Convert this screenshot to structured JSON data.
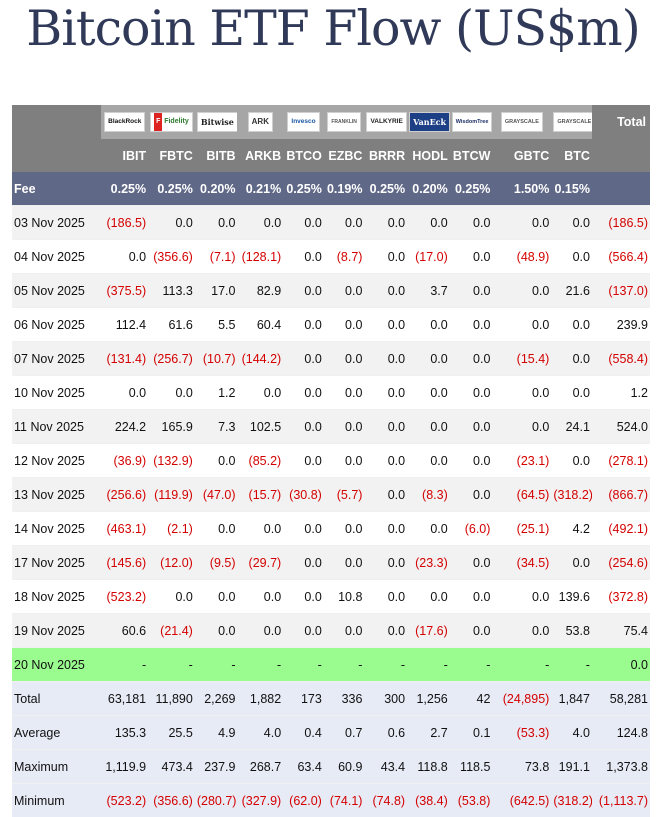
{
  "title": "Bitcoin ETF Flow (US$m)",
  "logos": [
    {
      "name": "blackrock-logo",
      "text": "BlackRock",
      "cls": ""
    },
    {
      "name": "fidelity-logo",
      "text": "Fidelity",
      "cls": "fid"
    },
    {
      "name": "bitwise-logo",
      "text": "Bitwise",
      "cls": "bw"
    },
    {
      "name": "ark-invest-logo",
      "text": "ARK",
      "cls": "ark"
    },
    {
      "name": "invesco-logo",
      "text": "Invesco",
      "cls": "inv"
    },
    {
      "name": "franklin-templeton-logo",
      "text": "FRANKLIN",
      "cls": "ft"
    },
    {
      "name": "valkyrie-logo",
      "text": "VALKYRIE",
      "cls": "val"
    },
    {
      "name": "vaneck-logo",
      "text": "VanEck",
      "cls": "ve"
    },
    {
      "name": "wisdomtree-logo",
      "text": "WisdomTree",
      "cls": "wt"
    },
    {
      "name": "grayscale-logo",
      "text": "GRAYSCALE",
      "cls": "gs"
    },
    {
      "name": "grayscale-logo",
      "text": "GRAYSCALE",
      "cls": "gs"
    }
  ],
  "header": {
    "total_label": "Total",
    "fee_label": "Fee",
    "tickers": [
      "IBIT",
      "FBTC",
      "BITB",
      "ARKB",
      "BTCO",
      "EZBC",
      "BRRR",
      "HODL",
      "BTCW",
      "GBTC",
      "BTC"
    ],
    "fees": [
      "0.25%",
      "0.25%",
      "0.20%",
      "0.21%",
      "0.25%",
      "0.19%",
      "0.25%",
      "0.20%",
      "0.25%",
      "1.50%",
      "0.15%"
    ]
  },
  "rows": [
    {
      "label": "03 Nov 2025",
      "values": [
        "(186.5)",
        "0.0",
        "0.0",
        "0.0",
        "0.0",
        "0.0",
        "0.0",
        "0.0",
        "0.0",
        "0.0",
        "0.0"
      ],
      "total": "(186.5)",
      "style": "shade"
    },
    {
      "label": "04 Nov 2025",
      "values": [
        "0.0",
        "(356.6)",
        "(7.1)",
        "(128.1)",
        "0.0",
        "(8.7)",
        "0.0",
        "(17.0)",
        "0.0",
        "(48.9)",
        "0.0"
      ],
      "total": "(566.4)",
      "style": ""
    },
    {
      "label": "05 Nov 2025",
      "values": [
        "(375.5)",
        "113.3",
        "17.0",
        "82.9",
        "0.0",
        "0.0",
        "0.0",
        "3.7",
        "0.0",
        "0.0",
        "21.6"
      ],
      "total": "(137.0)",
      "style": "shade"
    },
    {
      "label": "06 Nov 2025",
      "values": [
        "112.4",
        "61.6",
        "5.5",
        "60.4",
        "0.0",
        "0.0",
        "0.0",
        "0.0",
        "0.0",
        "0.0",
        "0.0"
      ],
      "total": "239.9",
      "style": ""
    },
    {
      "label": "07 Nov 2025",
      "values": [
        "(131.4)",
        "(256.7)",
        "(10.7)",
        "(144.2)",
        "0.0",
        "0.0",
        "0.0",
        "0.0",
        "0.0",
        "(15.4)",
        "0.0"
      ],
      "total": "(558.4)",
      "style": "shade"
    },
    {
      "label": "10 Nov 2025",
      "values": [
        "0.0",
        "0.0",
        "1.2",
        "0.0",
        "0.0",
        "0.0",
        "0.0",
        "0.0",
        "0.0",
        "0.0",
        "0.0"
      ],
      "total": "1.2",
      "style": ""
    },
    {
      "label": "11 Nov 2025",
      "values": [
        "224.2",
        "165.9",
        "7.3",
        "102.5",
        "0.0",
        "0.0",
        "0.0",
        "0.0",
        "0.0",
        "0.0",
        "24.1"
      ],
      "total": "524.0",
      "style": "shade"
    },
    {
      "label": "12 Nov 2025",
      "values": [
        "(36.9)",
        "(132.9)",
        "0.0",
        "(85.2)",
        "0.0",
        "0.0",
        "0.0",
        "0.0",
        "0.0",
        "(23.1)",
        "0.0"
      ],
      "total": "(278.1)",
      "style": ""
    },
    {
      "label": "13 Nov 2025",
      "values": [
        "(256.6)",
        "(119.9)",
        "(47.0)",
        "(15.7)",
        "(30.8)",
        "(5.7)",
        "0.0",
        "(8.3)",
        "0.0",
        "(64.5)",
        "(318.2)"
      ],
      "total": "(866.7)",
      "style": "shade"
    },
    {
      "label": "14 Nov 2025",
      "values": [
        "(463.1)",
        "(2.1)",
        "0.0",
        "0.0",
        "0.0",
        "0.0",
        "0.0",
        "0.0",
        "(6.0)",
        "(25.1)",
        "4.2"
      ],
      "total": "(492.1)",
      "style": ""
    },
    {
      "label": "17 Nov 2025",
      "values": [
        "(145.6)",
        "(12.0)",
        "(9.5)",
        "(29.7)",
        "0.0",
        "0.0",
        "0.0",
        "(23.3)",
        "0.0",
        "(34.5)",
        "0.0"
      ],
      "total": "(254.6)",
      "style": "shade"
    },
    {
      "label": "18 Nov 2025",
      "values": [
        "(523.2)",
        "0.0",
        "0.0",
        "0.0",
        "0.0",
        "10.8",
        "0.0",
        "0.0",
        "0.0",
        "0.0",
        "139.6"
      ],
      "total": "(372.8)",
      "style": ""
    },
    {
      "label": "19 Nov 2025",
      "values": [
        "60.6",
        "(21.4)",
        "0.0",
        "0.0",
        "0.0",
        "0.0",
        "0.0",
        "(17.6)",
        "0.0",
        "0.0",
        "53.8"
      ],
      "total": "75.4",
      "style": "shade"
    },
    {
      "label": "20 Nov 2025",
      "values": [
        "-",
        "-",
        "-",
        "-",
        "-",
        "-",
        "-",
        "-",
        "-",
        "-",
        "-"
      ],
      "total": "0.0",
      "style": "hl"
    },
    {
      "label": "Total",
      "values": [
        "63,181",
        "11,890",
        "2,269",
        "1,882",
        "173",
        "336",
        "300",
        "1,256",
        "42",
        "(24,895)",
        "1,847"
      ],
      "total": "58,281",
      "style": "stat"
    },
    {
      "label": "Average",
      "values": [
        "135.3",
        "25.5",
        "4.9",
        "4.0",
        "0.4",
        "0.7",
        "0.6",
        "2.7",
        "0.1",
        "(53.3)",
        "4.0"
      ],
      "total": "124.8",
      "style": "stat"
    },
    {
      "label": "Maximum",
      "values": [
        "1,119.9",
        "473.4",
        "237.9",
        "268.7",
        "63.4",
        "60.9",
        "43.4",
        "118.8",
        "118.5",
        "73.8",
        "191.1"
      ],
      "total": "1,373.8",
      "style": "stat"
    },
    {
      "label": "Minimum",
      "values": [
        "(523.2)",
        "(356.6)",
        "(280.7)",
        "(327.9)",
        "(62.0)",
        "(74.1)",
        "(74.8)",
        "(38.4)",
        "(53.8)",
        "(642.5)",
        "(318.2)"
      ],
      "total": "(1,113.7)",
      "style": "stat"
    }
  ]
}
